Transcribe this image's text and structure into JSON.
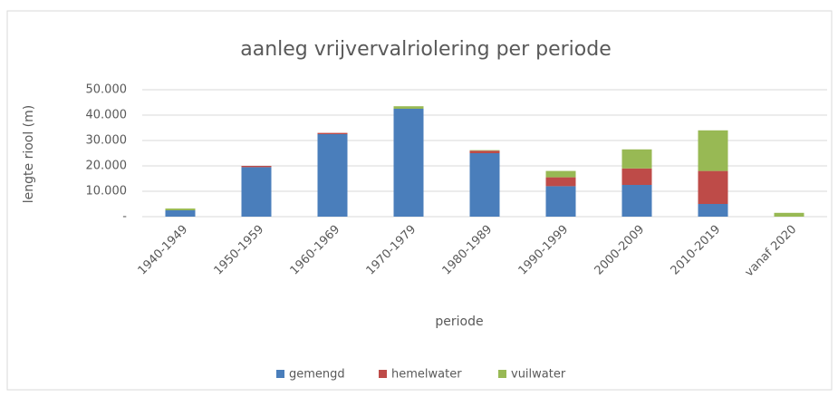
{
  "chart_data": {
    "type": "bar",
    "stacked": true,
    "title": "aanleg vrijvervalriolering per periode",
    "x_label": "periode",
    "y_label": "lengte riool (m)",
    "categories": [
      "1940-1949",
      "1950-1959",
      "1960-1969",
      "1970-1979",
      "1980-1989",
      "1990-1999",
      "2000-2009",
      "2010-2019",
      "vanaf 2020"
    ],
    "series": [
      {
        "name": "gemengd",
        "color": "#4a7ebb",
        "values": [
          2500,
          19500,
          32500,
          42500,
          25000,
          12000,
          12500,
          5000,
          0
        ]
      },
      {
        "name": "hemelwater",
        "color": "#be4b48",
        "values": [
          0,
          500,
          500,
          0,
          1000,
          3500,
          6500,
          13000,
          0
        ]
      },
      {
        "name": "vuilwater",
        "color": "#98b954",
        "values": [
          700,
          0,
          0,
          1000,
          200,
          2500,
          7500,
          16000,
          1500
        ]
      }
    ],
    "ylim": [
      0,
      50000
    ],
    "yticks": [
      {
        "value": 0,
        "label": "-"
      },
      {
        "value": 10000,
        "label": "10.000"
      },
      {
        "value": 20000,
        "label": "20.000"
      },
      {
        "value": 30000,
        "label": "30.000"
      },
      {
        "value": 40000,
        "label": "40.000"
      },
      {
        "value": 50000,
        "label": "50.000"
      }
    ],
    "grid": true,
    "legend": "bottom"
  }
}
